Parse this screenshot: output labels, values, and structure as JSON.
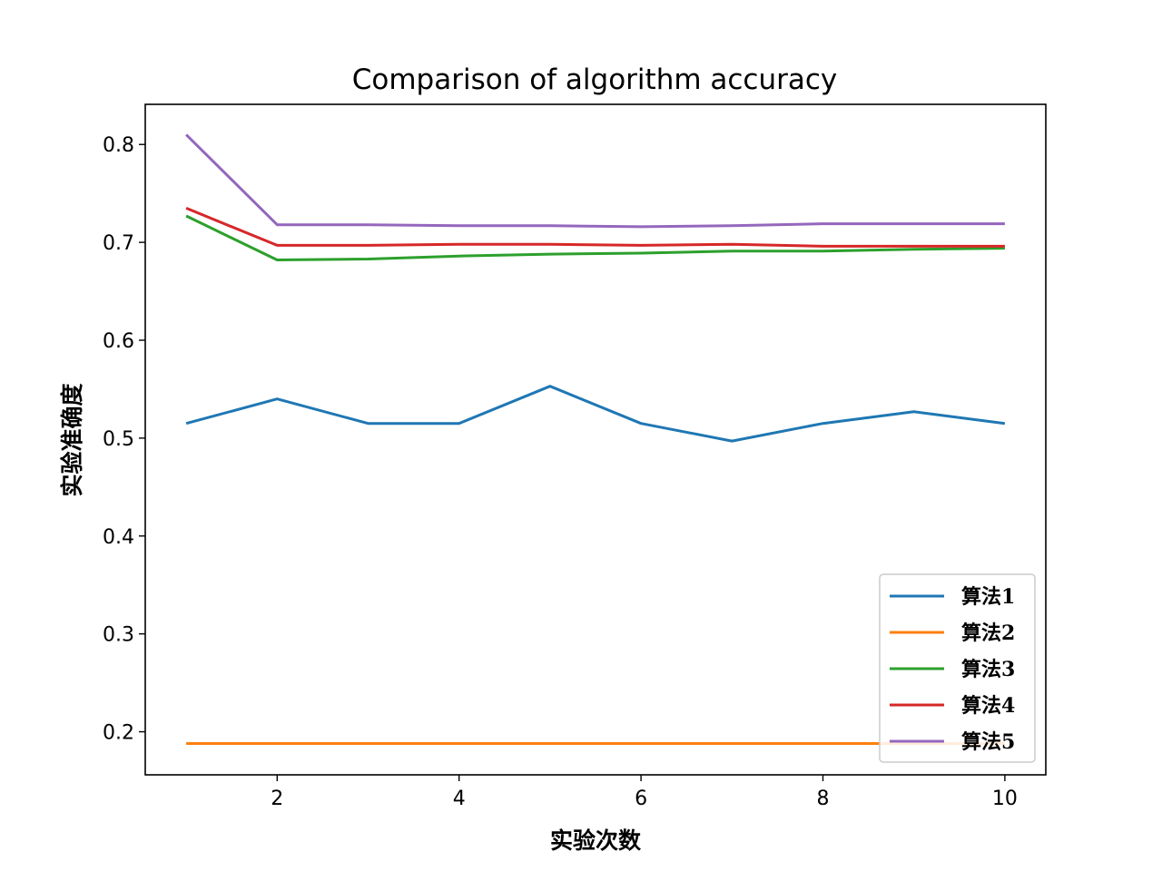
{
  "chart_data": {
    "type": "line",
    "title": "Comparison of algorithm accuracy",
    "xlabel": "实验次数",
    "ylabel": "实验准确度",
    "x": [
      1,
      2,
      3,
      4,
      5,
      6,
      7,
      8,
      9,
      10
    ],
    "xlim": [
      0.55,
      10.45
    ],
    "ylim": [
      0.156,
      0.841
    ],
    "xticks": [
      2,
      4,
      6,
      8,
      10
    ],
    "yticks": [
      0.2,
      0.3,
      0.4,
      0.5,
      0.6,
      0.7,
      0.8
    ],
    "xtick_labels": [
      "2",
      "4",
      "6",
      "8",
      "10"
    ],
    "ytick_labels": [
      "0.2",
      "0.3",
      "0.4",
      "0.5",
      "0.6",
      "0.7",
      "0.8"
    ],
    "grid": false,
    "legend_position": "lower-right",
    "series": [
      {
        "name": "算法1",
        "color": "#1f77b4",
        "values": [
          0.515,
          0.54,
          0.515,
          0.515,
          0.553,
          0.515,
          0.497,
          0.515,
          0.527,
          0.515
        ]
      },
      {
        "name": "算法2",
        "color": "#ff7f0e",
        "values": [
          0.188,
          0.188,
          0.188,
          0.188,
          0.188,
          0.188,
          0.188,
          0.188,
          0.188,
          0.188
        ]
      },
      {
        "name": "算法3",
        "color": "#2ca02c",
        "values": [
          0.727,
          0.682,
          0.683,
          0.686,
          0.688,
          0.689,
          0.691,
          0.691,
          0.693,
          0.694
        ]
      },
      {
        "name": "算法4",
        "color": "#d62728",
        "values": [
          0.735,
          0.697,
          0.697,
          0.698,
          0.698,
          0.697,
          0.698,
          0.696,
          0.696,
          0.696
        ]
      },
      {
        "name": "算法5",
        "color": "#9467bd",
        "values": [
          0.81,
          0.718,
          0.718,
          0.717,
          0.717,
          0.716,
          0.717,
          0.719,
          0.719,
          0.719
        ]
      }
    ]
  }
}
